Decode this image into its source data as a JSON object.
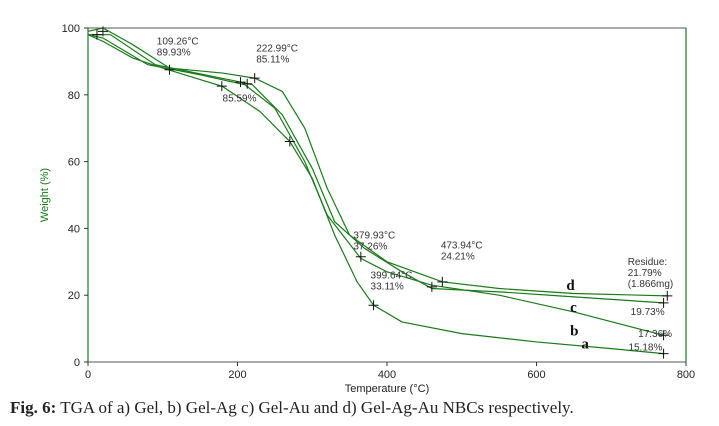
{
  "chart_data": {
    "type": "line",
    "title": "",
    "xlabel": "Temperature (°C)",
    "ylabel": "Weight (%)",
    "xlim": [
      0,
      800
    ],
    "ylim": [
      0,
      100
    ],
    "xticks": [
      0,
      200,
      400,
      600,
      800
    ],
    "yticks": [
      0,
      20,
      40,
      60,
      80,
      100
    ],
    "series": [
      {
        "name": "a",
        "color": "#1a7a1a",
        "points": [
          [
            0,
            98
          ],
          [
            20,
            96
          ],
          [
            60,
            91
          ],
          [
            100,
            88
          ],
          [
            180,
            82.5
          ],
          [
            230,
            75
          ],
          [
            270,
            66
          ],
          [
            300,
            55
          ],
          [
            330,
            38
          ],
          [
            360,
            24
          ],
          [
            382,
            17
          ],
          [
            420,
            12
          ],
          [
            500,
            8.5
          ],
          [
            600,
            6
          ],
          [
            700,
            4
          ],
          [
            770,
            2.5
          ]
        ]
      },
      {
        "name": "b",
        "color": "#1a7a1a",
        "points": [
          [
            0,
            98
          ],
          [
            20,
            97
          ],
          [
            80,
            89
          ],
          [
            150,
            86
          ],
          [
            210,
            83
          ],
          [
            250,
            76
          ],
          [
            290,
            60
          ],
          [
            320,
            44
          ],
          [
            365,
            31
          ],
          [
            400,
            27
          ],
          [
            460,
            23
          ],
          [
            550,
            20
          ],
          [
            650,
            15
          ],
          [
            770,
            8
          ]
        ]
      },
      {
        "name": "c",
        "color": "#1a7a1a",
        "points": [
          [
            0,
            98
          ],
          [
            30,
            98
          ],
          [
            90,
            89
          ],
          [
            200,
            84
          ],
          [
            220,
            83
          ],
          [
            260,
            74
          ],
          [
            300,
            58
          ],
          [
            330,
            42
          ],
          [
            370,
            34
          ],
          [
            420,
            27
          ],
          [
            460,
            22
          ],
          [
            550,
            21
          ],
          [
            650,
            19.5
          ],
          [
            770,
            17.7
          ]
        ]
      },
      {
        "name": "d",
        "color": "#1a7a1a",
        "points": [
          [
            0,
            99
          ],
          [
            20,
            100
          ],
          [
            60,
            95
          ],
          [
            109,
            88
          ],
          [
            180,
            86.5
          ],
          [
            223,
            85
          ],
          [
            260,
            81
          ],
          [
            290,
            70
          ],
          [
            320,
            52
          ],
          [
            350,
            38
          ],
          [
            400,
            30
          ],
          [
            474,
            24
          ],
          [
            550,
            22
          ],
          [
            650,
            20.5
          ],
          [
            775,
            19.8
          ]
        ]
      }
    ],
    "markers": [
      [
        12,
        98
      ],
      [
        20,
        99
      ],
      [
        109,
        87.5
      ],
      [
        179,
        82.6
      ],
      [
        204,
        83.8
      ],
      [
        213,
        83.3
      ],
      [
        223,
        85
      ],
      [
        270,
        66
      ],
      [
        365,
        31.5
      ],
      [
        382,
        17
      ],
      [
        460,
        22.5
      ],
      [
        474,
        24
      ],
      [
        770,
        17.7
      ],
      [
        775,
        19.8
      ],
      [
        770,
        8
      ],
      [
        770,
        2.5
      ]
    ],
    "annotations": [
      {
        "lines": [
          "109.26°C",
          "89.93%"
        ],
        "at": [
          92,
          95
        ]
      },
      {
        "lines": [
          "222.99°C",
          "85.11%"
        ],
        "at": [
          225,
          93
        ]
      },
      {
        "lines": [
          "85.59%"
        ],
        "at": [
          180,
          78
        ]
      },
      {
        "lines": [
          "379.93°C",
          "37.26%"
        ],
        "at": [
          355,
          37
        ]
      },
      {
        "lines": [
          "399.64°C",
          "33.11%"
        ],
        "at": [
          378,
          25
        ]
      },
      {
        "lines": [
          "473.94°C",
          "24.21%"
        ],
        "at": [
          472,
          34
        ]
      },
      {
        "lines": [
          "Residue:",
          "21.79%",
          "(1.866mg)"
        ],
        "at": [
          722,
          29
        ]
      },
      {
        "lines": [
          "19.73%"
        ],
        "at": [
          726,
          14
        ]
      },
      {
        "lines": [
          "17.36%"
        ],
        "at": [
          736,
          7.5
        ]
      },
      {
        "lines": [
          "15.18%"
        ],
        "at": [
          723,
          3.5
        ]
      }
    ],
    "curve_labels": [
      {
        "text": "d",
        "at": [
          640,
          21.5
        ]
      },
      {
        "text": "c",
        "at": [
          645,
          15
        ]
      },
      {
        "text": "b",
        "at": [
          645,
          8
        ]
      },
      {
        "text": "a",
        "at": [
          660,
          4
        ]
      }
    ]
  },
  "caption": {
    "label": "Fig. 6:",
    "text": " TGA of a) Gel, b) Gel-Ag c) Gel-Au and d) Gel-Ag-Au NBCs respectively."
  }
}
